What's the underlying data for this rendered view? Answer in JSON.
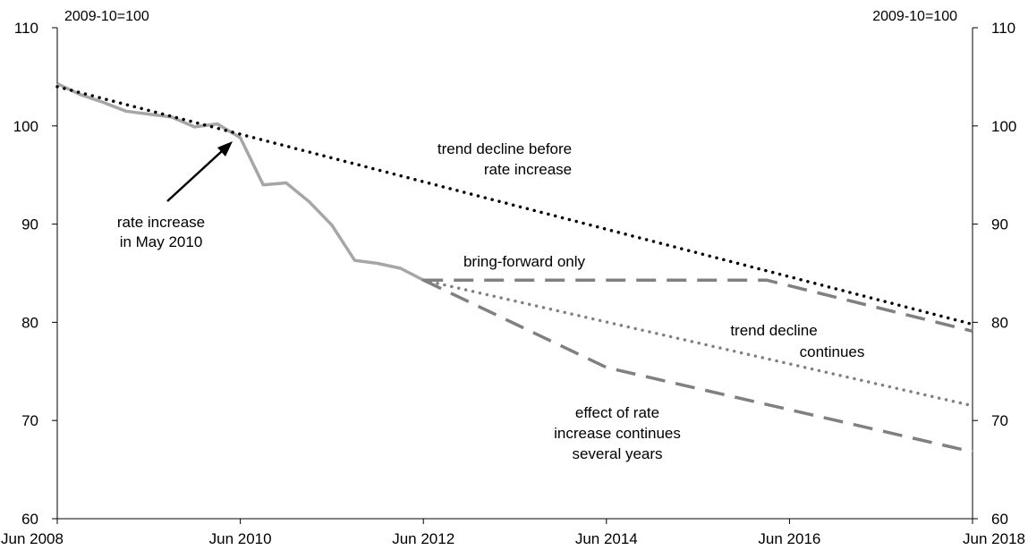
{
  "chart_data": {
    "type": "line",
    "y_unit_left": "2009-10=100",
    "y_unit_right": "2009-10=100",
    "ylim": [
      60,
      110
    ],
    "yticks": [
      60,
      70,
      80,
      90,
      100,
      110
    ],
    "xlim": [
      "2008-06",
      "2018-06"
    ],
    "xticks": [
      {
        "value": "2008-06",
        "label": "Jun 2008"
      },
      {
        "value": "2010-06",
        "label": "Jun 2010"
      },
      {
        "value": "2012-06",
        "label": "Jun 2012"
      },
      {
        "value": "2014-06",
        "label": "Jun 2014"
      },
      {
        "value": "2016-06",
        "label": "Jun 2016"
      },
      {
        "value": "2018-06",
        "label": "Jun 2018"
      }
    ],
    "grid": false,
    "series": [
      {
        "key": "actual",
        "style": "solid",
        "color": "#a6a6a6",
        "points": [
          [
            "2008-06",
            104.3
          ],
          [
            "2008-09",
            103.2
          ],
          [
            "2008-12",
            102.4
          ],
          [
            "2009-03",
            101.5
          ],
          [
            "2009-06",
            101.2
          ],
          [
            "2009-09",
            100.9
          ],
          [
            "2009-12",
            99.9
          ],
          [
            "2010-03",
            100.2
          ],
          [
            "2010-06",
            98.8
          ],
          [
            "2010-09",
            94.0
          ],
          [
            "2010-12",
            94.2
          ],
          [
            "2011-03",
            92.3
          ],
          [
            "2011-06",
            89.9
          ],
          [
            "2011-09",
            86.3
          ],
          [
            "2011-12",
            86.0
          ],
          [
            "2012-03",
            85.5
          ],
          [
            "2012-06",
            84.3
          ]
        ]
      },
      {
        "key": "trend_before",
        "style": "dotted",
        "color": "#000000",
        "points": [
          [
            "2008-06",
            104.0
          ],
          [
            "2018-06",
            79.8
          ]
        ]
      },
      {
        "key": "bring_forward",
        "style": "dashed",
        "color": "#808080",
        "points": [
          [
            "2012-06",
            84.3
          ],
          [
            "2016-03",
            84.3
          ],
          [
            "2018-06",
            79.1
          ]
        ]
      },
      {
        "key": "trend_continues",
        "style": "dotted",
        "color": "#808080",
        "points": [
          [
            "2012-06",
            84.3
          ],
          [
            "2018-06",
            71.5
          ]
        ]
      },
      {
        "key": "effect_continues",
        "style": "dashed",
        "color": "#808080",
        "points": [
          [
            "2012-06",
            84.3
          ],
          [
            "2014-06",
            75.4
          ],
          [
            "2018-06",
            66.8
          ]
        ]
      }
    ],
    "annotations": [
      {
        "key": "trend_before_1",
        "text": "trend decline before"
      },
      {
        "key": "trend_before_2",
        "text": "rate increase"
      },
      {
        "key": "rate_inc_1",
        "text": "rate increase"
      },
      {
        "key": "rate_inc_2",
        "text": "in May 2010"
      },
      {
        "key": "bring_forward",
        "text": "bring-forward only"
      },
      {
        "key": "trend_cont_1",
        "text": "trend decline"
      },
      {
        "key": "trend_cont_2",
        "text": "continues"
      },
      {
        "key": "effect_1",
        "text": "effect of rate"
      },
      {
        "key": "effect_2",
        "text": "increase continues"
      },
      {
        "key": "effect_3",
        "text": "several years"
      }
    ]
  }
}
